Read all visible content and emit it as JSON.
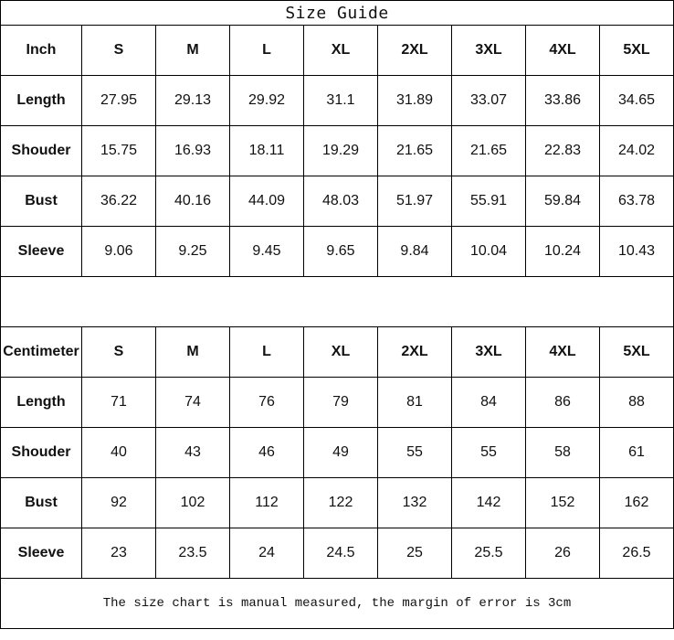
{
  "title": "Size Guide",
  "tables": [
    {
      "unit": "Inch",
      "sizes": [
        "S",
        "M",
        "L",
        "XL",
        "2XL",
        "3XL",
        "4XL",
        "5XL"
      ],
      "rows": [
        {
          "label": "Length",
          "values": [
            "27.95",
            "29.13",
            "29.92",
            "31.1",
            "31.89",
            "33.07",
            "33.86",
            "34.65"
          ]
        },
        {
          "label": "Shouder",
          "values": [
            "15.75",
            "16.93",
            "18.11",
            "19.29",
            "21.65",
            "21.65",
            "22.83",
            "24.02"
          ]
        },
        {
          "label": "Bust",
          "values": [
            "36.22",
            "40.16",
            "44.09",
            "48.03",
            "51.97",
            "55.91",
            "59.84",
            "63.78"
          ]
        },
        {
          "label": "Sleeve",
          "values": [
            "9.06",
            "9.25",
            "9.45",
            "9.65",
            "9.84",
            "10.04",
            "10.24",
            "10.43"
          ]
        }
      ]
    },
    {
      "unit": "Centimeter",
      "sizes": [
        "S",
        "M",
        "L",
        "XL",
        "2XL",
        "3XL",
        "4XL",
        "5XL"
      ],
      "rows": [
        {
          "label": "Length",
          "values": [
            "71",
            "74",
            "76",
            "79",
            "81",
            "84",
            "86",
            "88"
          ]
        },
        {
          "label": "Shouder",
          "values": [
            "40",
            "43",
            "46",
            "49",
            "55",
            "55",
            "58",
            "61"
          ]
        },
        {
          "label": "Bust",
          "values": [
            "92",
            "102",
            "112",
            "122",
            "132",
            "142",
            "152",
            "162"
          ]
        },
        {
          "label": "Sleeve",
          "values": [
            "23",
            "23.5",
            "24",
            "24.5",
            "25",
            "25.5",
            "26",
            "26.5"
          ]
        }
      ]
    }
  ],
  "footer": "The size chart is manual measured, the margin of error is 3cm"
}
